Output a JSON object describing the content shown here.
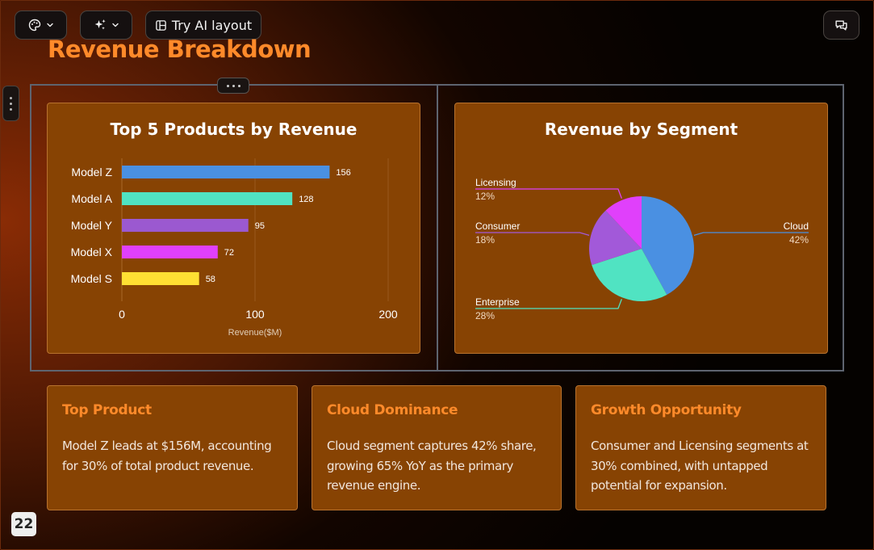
{
  "toolbar": {
    "ai_layout_label": "Try AI layout"
  },
  "slide": {
    "title": "Revenue Breakdown",
    "page_number": "22"
  },
  "bar_chart": {
    "title": "Top 5 Products by Revenue",
    "chart_data": {
      "type": "bar",
      "orientation": "horizontal",
      "title": "Top 5 Products by Revenue",
      "categories": [
        "Model Z",
        "Model A",
        "Model Y",
        "Model X",
        "Model S"
      ],
      "values": [
        156,
        128,
        95,
        72,
        58
      ],
      "colors": [
        "#4a90e2",
        "#50e3c2",
        "#9b59d0",
        "#e040fb",
        "#ffe033"
      ],
      "xlabel": "Revenue($M)",
      "ylabel": "",
      "xlim": [
        0,
        200
      ],
      "xticks": [
        0,
        100,
        200
      ],
      "grid": true,
      "legend": "none"
    }
  },
  "pie_chart": {
    "title": "Revenue by Segment",
    "chart_data": {
      "type": "pie",
      "title": "Revenue by Segment",
      "slices": [
        {
          "label": "Cloud",
          "value": 42,
          "display": "42%",
          "color": "#4a90e2"
        },
        {
          "label": "Enterprise",
          "value": 28,
          "display": "28%",
          "color": "#50e3c2"
        },
        {
          "label": "Consumer",
          "value": 18,
          "display": "18%",
          "color": "#a259d9"
        },
        {
          "label": "Licensing",
          "value": 12,
          "display": "12%",
          "color": "#e040fb"
        }
      ],
      "legend": "none"
    }
  },
  "insights": [
    {
      "title": "Top Product",
      "body": "Model Z leads at $156M, accounting for 30% of total product revenue."
    },
    {
      "title": "Cloud Dominance",
      "body": "Cloud segment captures 42% share, growing 65% YoY as the primary revenue engine."
    },
    {
      "title": "Growth Opportunity",
      "body": "Consumer and Licensing segments at 30% combined, with untapped potential for expansion."
    }
  ],
  "icons": {
    "theme": "palette-icon",
    "ai": "sparkle-icon",
    "layout": "layout-icon",
    "comments": "comments-icon",
    "chevron": "chevron-down-icon"
  }
}
